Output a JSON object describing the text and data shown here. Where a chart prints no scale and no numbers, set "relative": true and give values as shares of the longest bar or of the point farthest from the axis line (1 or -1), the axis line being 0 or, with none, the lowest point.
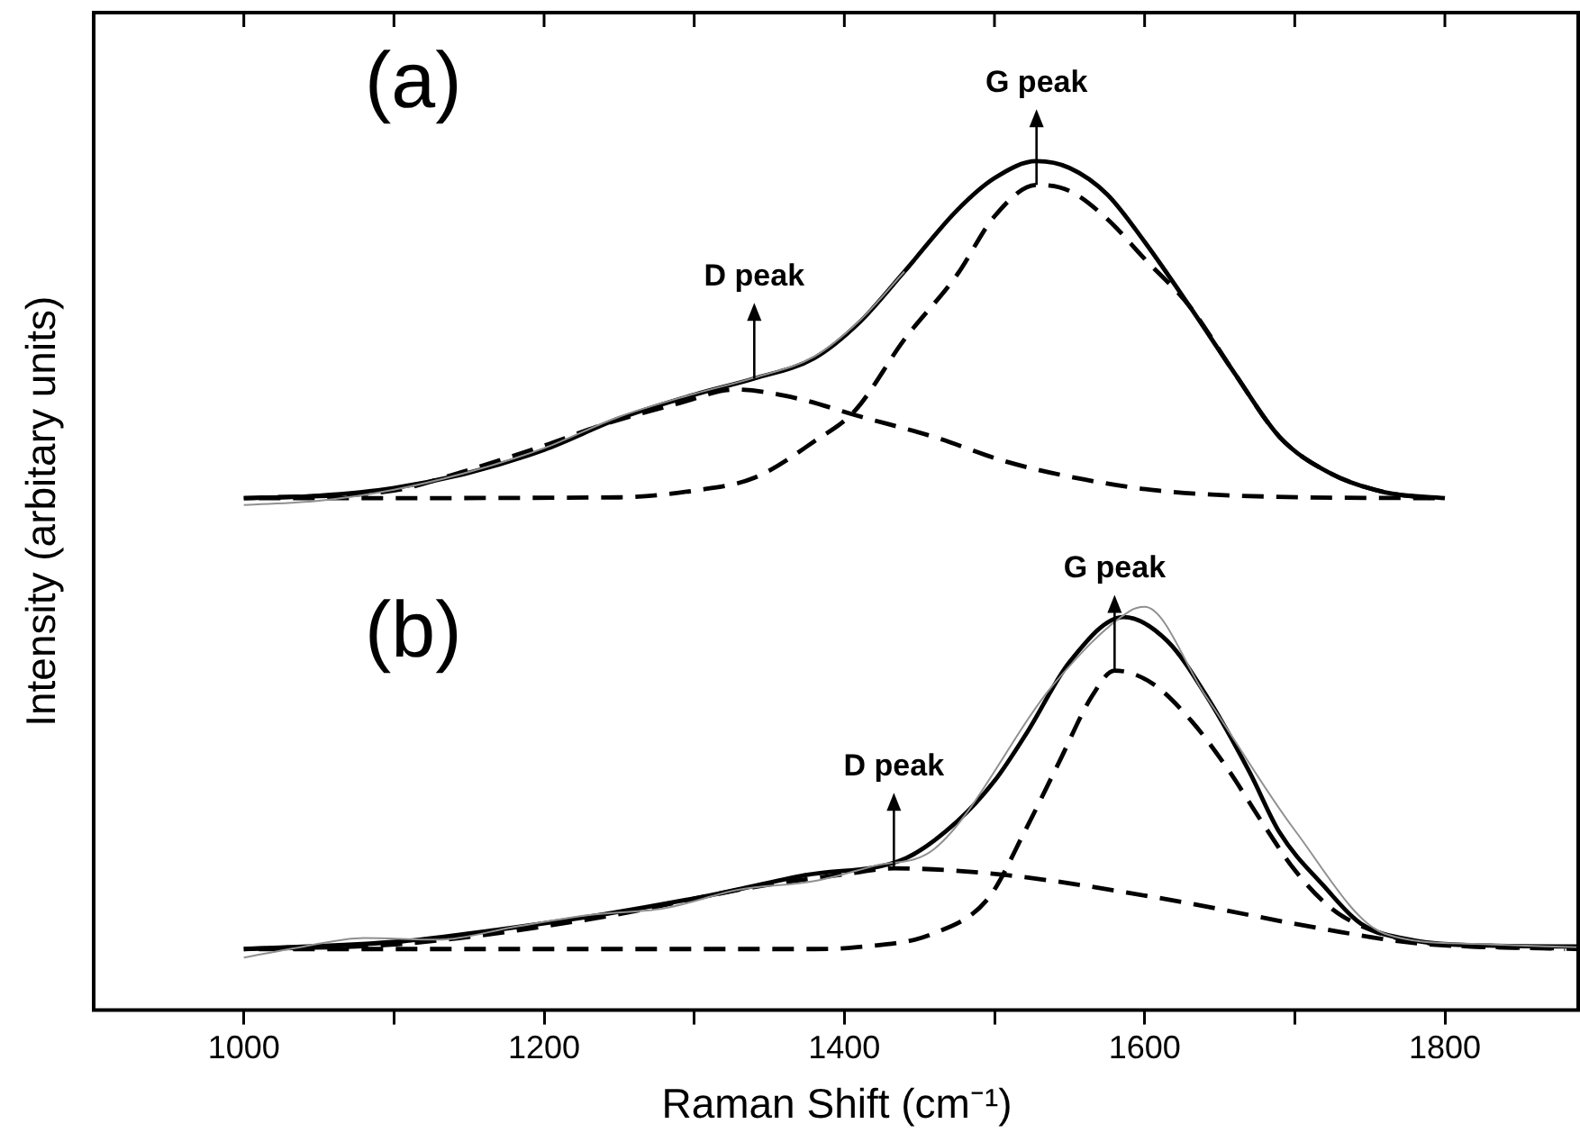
{
  "chart_data": {
    "type": "line",
    "relative": true,
    "xlabel": "Raman Shift (cm⁻¹)",
    "ylabel": "Intensity (arbitary units)",
    "xlim": [
      900,
      1890
    ],
    "xticks": [
      1000,
      {
        "value": 1100,
        "label": null
      },
      1200,
      {
        "value": 1300,
        "label": null
      },
      1400,
      {
        "value": 1500,
        "label": null
      },
      1600,
      {
        "value": 1700,
        "label": null
      },
      1800
    ],
    "legend": false,
    "grid": false,
    "marker": "none",
    "series": [
      {
        "color": "#909090",
        "line_style": "solid",
        "x": [
          1000,
          1050,
          1100,
          1150,
          1200,
          1250,
          1300,
          1340,
          1380,
          1410,
          1440
        ],
        "values": [
          0.595,
          0.6,
          0.613,
          0.634,
          0.662,
          0.699,
          0.726,
          0.745,
          0.77,
          0.812,
          0.87
        ]
      },
      {
        "color": "#000000",
        "line_style": "solid",
        "x": [
          1000,
          1050,
          1100,
          1150,
          1200,
          1250,
          1300,
          1340,
          1380,
          1410,
          1440,
          1475,
          1500,
          1528,
          1550,
          1575,
          1600,
          1630,
          1660,
          1690,
          1723,
          1760,
          1800
        ],
        "values": [
          0.603,
          0.606,
          0.615,
          0.633,
          0.66,
          0.697,
          0.725,
          0.744,
          0.768,
          0.81,
          0.87,
          0.942,
          0.98,
          1.0,
          0.992,
          0.961,
          0.905,
          0.829,
          0.75,
          0.675,
          0.633,
          0.61,
          0.603
        ]
      },
      {
        "color": "#000000",
        "line_style": "dashed",
        "x": [
          1000,
          1100,
          1138,
          1200,
          1240,
          1290,
          1327,
          1370,
          1407,
          1460,
          1508,
          1560,
          1609,
          1680,
          1800
        ],
        "values": [
          0.603,
          0.612,
          0.63,
          0.665,
          0.69,
          0.715,
          0.731,
          0.72,
          0.701,
          0.675,
          0.646,
          0.625,
          0.612,
          0.605,
          0.603
        ]
      },
      {
        "color": "#000000",
        "line_style": "dashed",
        "x": [
          1010,
          1250,
          1300,
          1340,
          1380,
          1407,
          1440,
          1475,
          1500,
          1528,
          1550,
          1575,
          1600,
          1630,
          1660,
          1690,
          1723,
          1760,
          1790
        ],
        "values": [
          0.603,
          0.604,
          0.612,
          0.627,
          0.67,
          0.706,
          0.79,
          0.866,
          0.935,
          0.972,
          0.965,
          0.932,
          0.885,
          0.829,
          0.75,
          0.675,
          0.633,
          0.61,
          0.603
        ]
      },
      {
        "color": "#909090",
        "line_style": "solid",
        "x": [
          1000,
          1040,
          1080,
          1130,
          1180,
          1230,
          1280,
          1330,
          1380,
          1420,
          1460,
          1540,
          1590,
          1600,
          1640,
          1700,
          1760,
          1820,
          1890
        ],
        "values": [
          0.062,
          0.075,
          0.085,
          0.083,
          0.098,
          0.112,
          0.12,
          0.142,
          0.152,
          0.17,
          0.19,
          0.385,
          0.47,
          0.475,
          0.372,
          0.212,
          0.09,
          0.078,
          0.074
        ]
      },
      {
        "color": "#000000",
        "line_style": "solid",
        "x": [
          1000,
          1105,
          1170,
          1240,
          1310,
          1374,
          1441,
          1475,
          1500,
          1522,
          1550,
          1586,
          1615,
          1643,
          1670,
          1690,
          1720,
          1744,
          1780,
          1830,
          1890
        ],
        "values": [
          0.072,
          0.081,
          0.095,
          0.113,
          0.135,
          0.159,
          0.179,
          0.222,
          0.27,
          0.328,
          0.41,
          0.463,
          0.435,
          0.365,
          0.28,
          0.209,
          0.145,
          0.102,
          0.082,
          0.076,
          0.075
        ]
      },
      {
        "color": "#000000",
        "line_style": "dashed",
        "x": [
          1000,
          1105,
          1240,
          1340,
          1400,
          1433,
          1508,
          1610,
          1718,
          1780,
          1890
        ],
        "values": [
          0.072,
          0.078,
          0.11,
          0.145,
          0.16,
          0.167,
          0.159,
          0.132,
          0.096,
          0.079,
          0.072
        ]
      },
      {
        "color": "#000000",
        "line_style": "dashed",
        "x": [
          1010,
          1380,
          1407,
          1459,
          1496,
          1520,
          1543,
          1565,
          1580,
          1605,
          1631,
          1655,
          1678,
          1700,
          1725,
          1750,
          1780,
          1880
        ],
        "values": [
          0.072,
          0.072,
          0.074,
          0.09,
          0.132,
          0.21,
          0.292,
          0.37,
          0.4,
          0.385,
          0.341,
          0.285,
          0.222,
          0.165,
          0.119,
          0.095,
          0.081,
          0.072
        ]
      }
    ],
    "annotations": [
      "(a)",
      "(b)",
      {
        "text": "D peak",
        "x": 1340,
        "y": 0.744
      },
      {
        "text": "G peak",
        "x": 1528,
        "y": 0.972
      },
      {
        "text": "D peak",
        "x": 1433,
        "y": 0.167
      },
      {
        "text": "G peak",
        "x": 1580,
        "y": 0.4
      }
    ]
  }
}
